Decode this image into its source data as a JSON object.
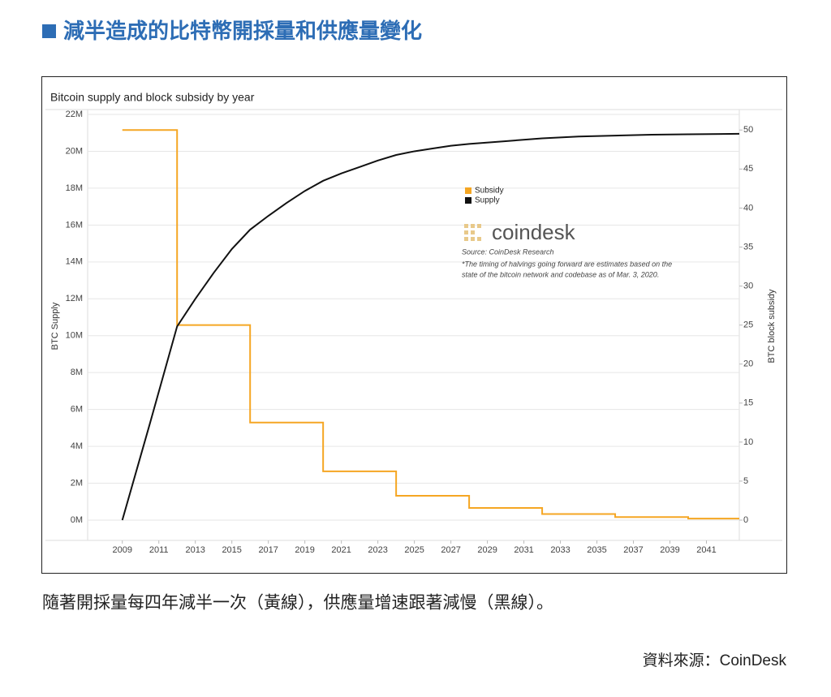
{
  "heading": "減半造成的比特幣開採量和供應量變化",
  "caption": "隨著開採量每四年減半一次（黃線），供應量增速跟著減慢（黑線）。",
  "credit": "資料來源：CoinDesk",
  "chart_data": {
    "type": "line",
    "title": "Bitcoin supply and block subsidy by year",
    "ylabel": "BTC Supply",
    "y2label": "BTC block subsidy",
    "brand": "coindesk",
    "source": "Source: CoinDesk Research",
    "note": [
      "*The timing of halvings going forward are estimates based on the",
      "state of the bitcoin network and codebase as of Mar. 3, 2020."
    ],
    "xlim": [
      2007.1,
      2042.8
    ],
    "xticks": [
      2009,
      2011,
      2013,
      2015,
      2017,
      2019,
      2021,
      2023,
      2025,
      2027,
      2029,
      2031,
      2033,
      2035,
      2037,
      2039,
      2041
    ],
    "ylim": [
      0,
      22000000
    ],
    "yticks": [
      {
        "value": 0,
        "label": "0M"
      },
      {
        "value": 2000000,
        "label": "2M"
      },
      {
        "value": 4000000,
        "label": "4M"
      },
      {
        "value": 6000000,
        "label": "6M"
      },
      {
        "value": 8000000,
        "label": "8M"
      },
      {
        "value": 10000000,
        "label": "10M"
      },
      {
        "value": 12000000,
        "label": "12M"
      },
      {
        "value": 14000000,
        "label": "14M"
      },
      {
        "value": 16000000,
        "label": "16M"
      },
      {
        "value": 18000000,
        "label": "18M"
      },
      {
        "value": 20000000,
        "label": "20M"
      },
      {
        "value": 22000000,
        "label": "22M"
      }
    ],
    "y2lim": [
      0,
      52
    ],
    "y2ticks": [
      0,
      5,
      10,
      15,
      20,
      25,
      30,
      35,
      40,
      45,
      50
    ],
    "grid": true,
    "series": [
      {
        "name": "Subsidy",
        "color": "#f5a623",
        "axis": "y2",
        "step": true,
        "x": [
          2009,
          2012,
          2016,
          2020,
          2024,
          2028,
          2032,
          2036,
          2040,
          2042.8
        ],
        "values": [
          50,
          25,
          12.5,
          6.25,
          3.125,
          1.5625,
          0.78125,
          0.390625,
          0.1953125,
          0.1953125
        ]
      },
      {
        "name": "Supply",
        "color": "#111111",
        "x": [
          2009,
          2010.5,
          2012,
          2013,
          2014,
          2015,
          2016,
          2017,
          2018,
          2019,
          2020,
          2021,
          2022,
          2023,
          2024,
          2025,
          2026,
          2027,
          2028,
          2030,
          2032,
          2034,
          2036,
          2038,
          2040,
          2042.8
        ],
        "values": [
          0,
          5200000,
          10500000,
          12000000,
          13400000,
          14700000,
          15750000,
          16500000,
          17200000,
          17850000,
          18400000,
          18800000,
          19150000,
          19500000,
          19800000,
          20000000,
          20150000,
          20300000,
          20400000,
          20550000,
          20700000,
          20800000,
          20850000,
          20900000,
          20920000,
          20950000
        ]
      }
    ]
  }
}
